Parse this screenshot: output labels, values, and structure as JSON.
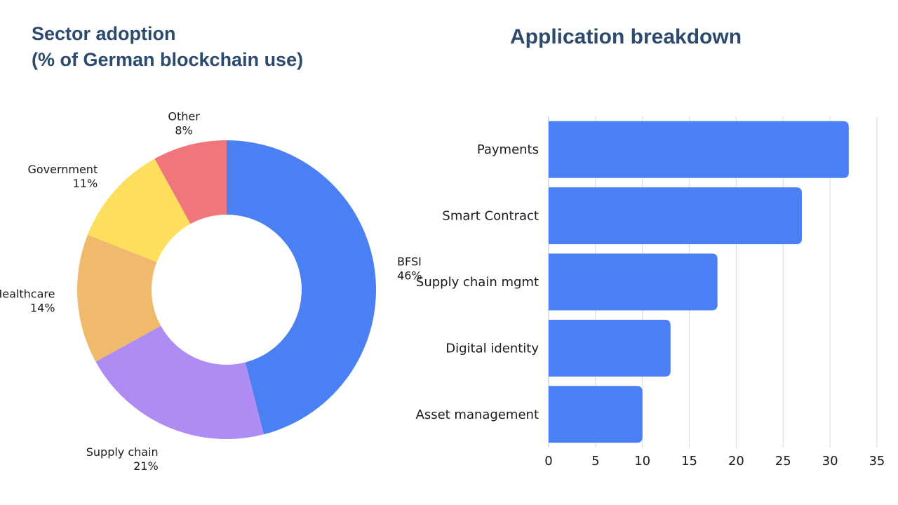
{
  "chart_data": [
    {
      "type": "pie",
      "title": "Sector adoption",
      "subtitle": "(% of German blockchain use)",
      "donut": true,
      "categories": [
        "BFSI",
        "Supply chain",
        "Healthcare",
        "Government",
        "Other"
      ],
      "values": [
        46,
        21,
        14,
        11,
        8
      ],
      "value_labels": [
        "46%",
        "21%",
        "14%",
        "11%",
        "8%"
      ],
      "colors": [
        "#4b80f5",
        "#ae8cf3",
        "#f0ba6d",
        "#fddf5d",
        "#f0767c"
      ]
    },
    {
      "type": "bar",
      "orientation": "horizontal",
      "title": "Application breakdown",
      "categories": [
        "Payments",
        "Smart Contract",
        "Supply chain mgmt",
        "Digital identity",
        "Asset management"
      ],
      "values": [
        32,
        27,
        18,
        13,
        10
      ],
      "xlim": [
        0,
        35
      ],
      "xticks": [
        "0",
        "5",
        "10",
        "15",
        "20",
        "25",
        "30",
        "35"
      ],
      "grid": true,
      "color": "#4b80f5"
    }
  ]
}
